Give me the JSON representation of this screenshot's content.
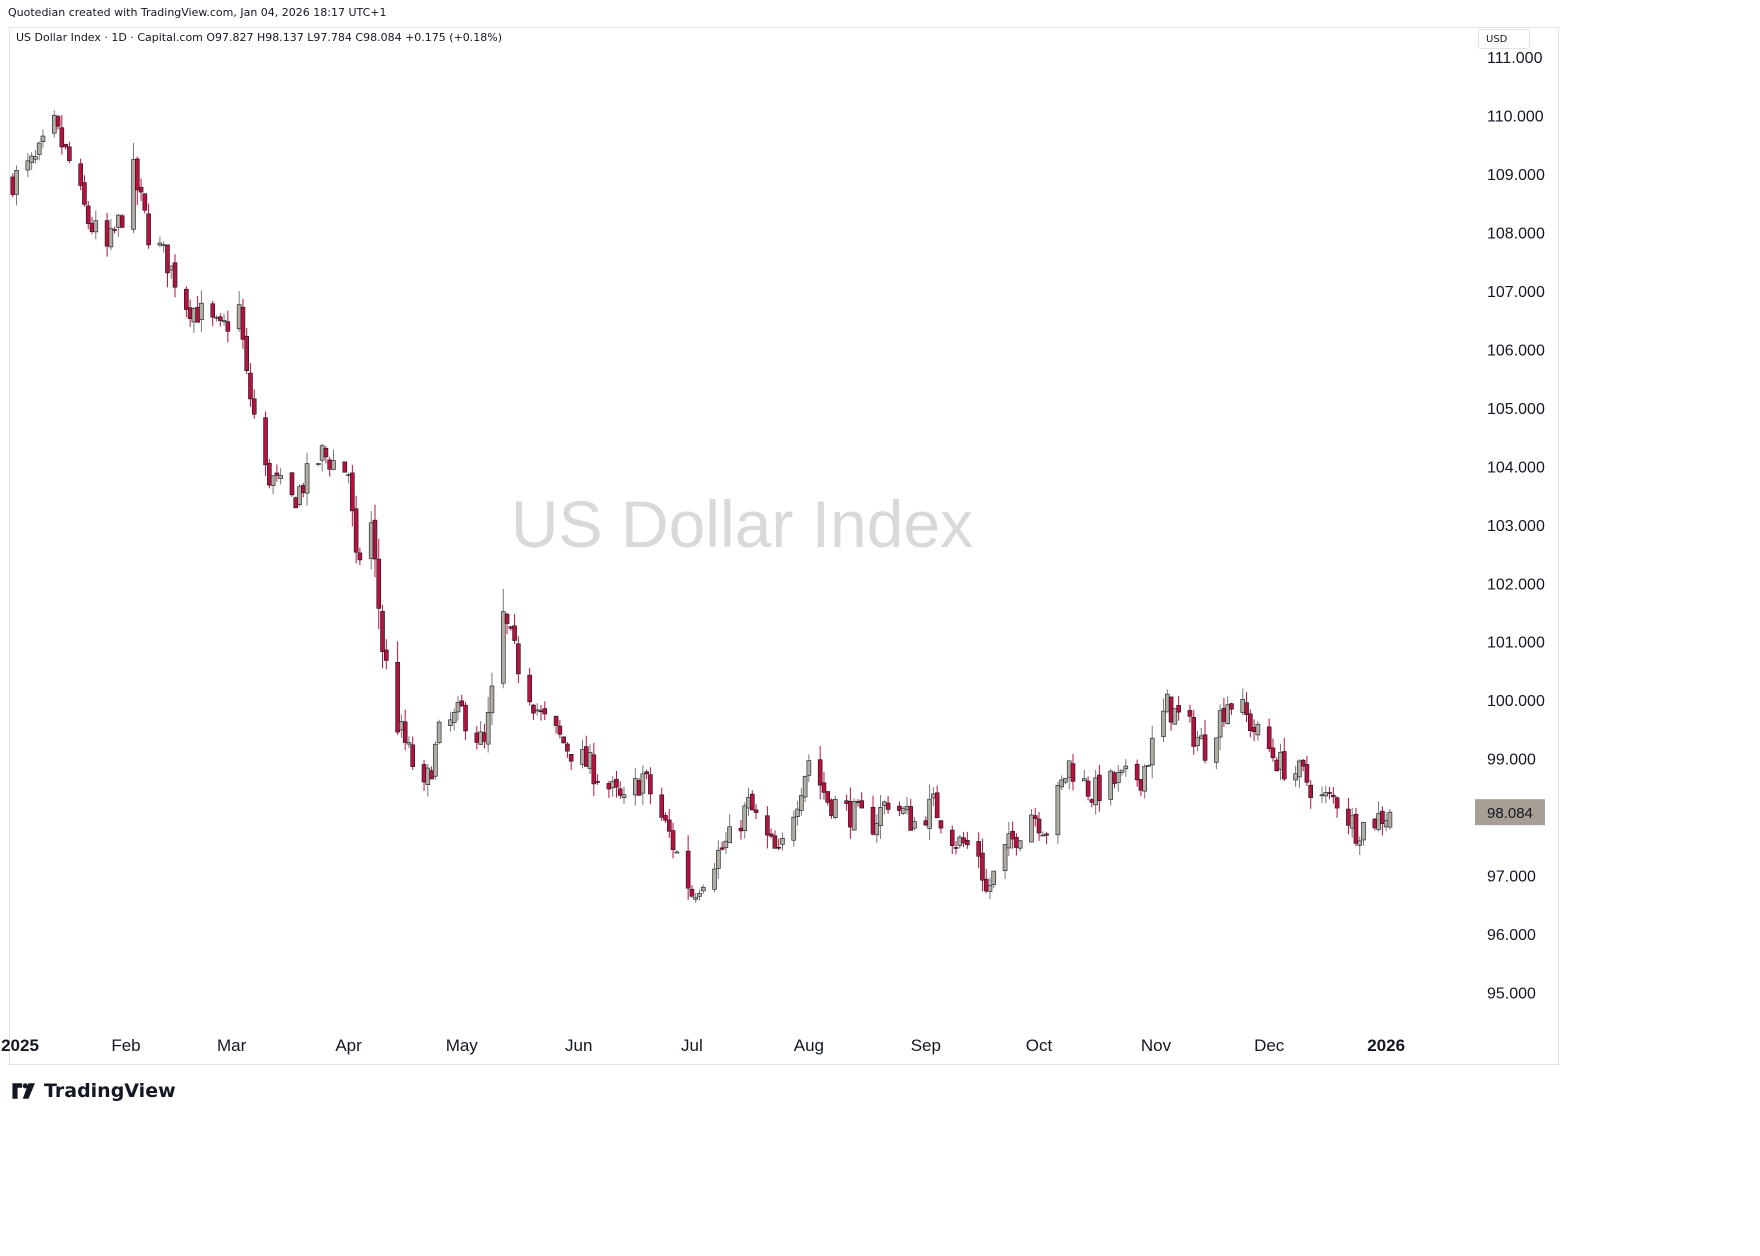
{
  "header": {
    "created_line": "Quotedian created with TradingView.com, Jan 04, 2026 18:17 UTC+1",
    "symbol_line": "US Dollar Index · 1D · Capital.com  O97.827  H98.137  L97.784  C98.084  +0.175 (+0.18%)",
    "currency_button": "USD"
  },
  "watermark": "US Dollar Index",
  "price_tag": "98.084",
  "brand": {
    "name": "TradingView",
    "logo_icon": "tradingview-logo-icon"
  },
  "colors": {
    "up": "#b2ada3",
    "down": "#b5123e",
    "outline": "#131722",
    "tag": "#a79e95"
  },
  "chart_data": {
    "type": "candlestick",
    "title": "US Dollar Index",
    "interval": "1D",
    "source": "Capital.com",
    "y_ticks": [
      "111.000",
      "110.000",
      "109.000",
      "108.000",
      "107.000",
      "106.000",
      "105.000",
      "104.000",
      "103.000",
      "102.000",
      "101.000",
      "100.000",
      "99.000",
      "98.000",
      "97.000",
      "96.000",
      "95.000"
    ],
    "x_ticks": [
      {
        "label": "2025",
        "date": "2025-01-01"
      },
      {
        "label": "Feb",
        "date": "2025-02-01"
      },
      {
        "label": "Mar",
        "date": "2025-03-01"
      },
      {
        "label": "Apr",
        "date": "2025-04-01"
      },
      {
        "label": "May",
        "date": "2025-05-01"
      },
      {
        "label": "Jun",
        "date": "2025-06-01"
      },
      {
        "label": "Jul",
        "date": "2025-07-01"
      },
      {
        "label": "Aug",
        "date": "2025-08-01"
      },
      {
        "label": "Sep",
        "date": "2025-09-01"
      },
      {
        "label": "Oct",
        "date": "2025-10-01"
      },
      {
        "label": "Nov",
        "date": "2025-11-01"
      },
      {
        "label": "Dec",
        "date": "2025-12-01"
      },
      {
        "label": "2026",
        "date": "2026-01-01"
      }
    ],
    "ylim": [
      94.6,
      111.3
    ],
    "xlim": [
      "2025-01-01",
      "2026-01-28"
    ],
    "last": {
      "open": 97.827,
      "high": 98.137,
      "low": 97.784,
      "close": 98.084,
      "change": "+0.175 (+0.18%)"
    },
    "weekly_path": [
      [
        "2025-01-02",
        108.9
      ],
      [
        "2025-01-08",
        109.2
      ],
      [
        "2025-01-13",
        109.8
      ],
      [
        "2025-01-17",
        109.2
      ],
      [
        "2025-01-22",
        108.2
      ],
      [
        "2025-01-27",
        107.7
      ],
      [
        "2025-01-31",
        108.3
      ],
      [
        "2025-02-03",
        109.0
      ],
      [
        "2025-02-07",
        108.0
      ],
      [
        "2025-02-12",
        107.5
      ],
      [
        "2025-02-17",
        106.8
      ],
      [
        "2025-02-21",
        106.6
      ],
      [
        "2025-02-26",
        106.3
      ],
      [
        "2025-03-03",
        106.7
      ],
      [
        "2025-03-05",
        105.5
      ],
      [
        "2025-03-10",
        103.9
      ],
      [
        "2025-03-17",
        103.4
      ],
      [
        "2025-03-25",
        104.2
      ],
      [
        "2025-04-01",
        103.9
      ],
      [
        "2025-04-03",
        102.3
      ],
      [
        "2025-04-07",
        103.0
      ],
      [
        "2025-04-10",
        100.9
      ],
      [
        "2025-04-14",
        99.6
      ],
      [
        "2025-04-21",
        98.4
      ],
      [
        "2025-04-25",
        99.4
      ],
      [
        "2025-05-01",
        99.8
      ],
      [
        "2025-05-07",
        99.2
      ],
      [
        "2025-05-12",
        101.4
      ],
      [
        "2025-05-16",
        100.6
      ],
      [
        "2025-05-22",
        99.7
      ],
      [
        "2025-05-29",
        99.2
      ],
      [
        "2025-06-05",
        98.8
      ],
      [
        "2025-06-13",
        98.2
      ],
      [
        "2025-06-18",
        98.7
      ],
      [
        "2025-06-25",
        97.7
      ],
      [
        "2025-07-01",
        96.7
      ],
      [
        "2025-07-07",
        97.3
      ],
      [
        "2025-07-11",
        97.6
      ],
      [
        "2025-07-16",
        98.2
      ],
      [
        "2025-07-21",
        97.6
      ],
      [
        "2025-07-24",
        97.3
      ],
      [
        "2025-08-01",
        99.0
      ],
      [
        "2025-08-06",
        98.3
      ],
      [
        "2025-08-11",
        98.1
      ],
      [
        "2025-08-18",
        97.9
      ],
      [
        "2025-08-22",
        98.3
      ],
      [
        "2025-08-29",
        97.9
      ],
      [
        "2025-09-03",
        98.2
      ],
      [
        "2025-09-09",
        97.6
      ],
      [
        "2025-09-15",
        97.4
      ],
      [
        "2025-09-17",
        96.7
      ],
      [
        "2025-09-22",
        97.4
      ],
      [
        "2025-09-29",
        98.1
      ],
      [
        "2025-10-03",
        97.8
      ],
      [
        "2025-10-09",
        98.9
      ],
      [
        "2025-10-15",
        98.4
      ],
      [
        "2025-10-21",
        98.6
      ],
      [
        "2025-10-28",
        98.7
      ],
      [
        "2025-11-04",
        99.9
      ],
      [
        "2025-11-10",
        99.5
      ],
      [
        "2025-11-14",
        99.2
      ],
      [
        "2025-11-20",
        100.0
      ],
      [
        "2025-11-24",
        99.8
      ],
      [
        "2025-11-28",
        99.4
      ],
      [
        "2025-12-04",
        98.9
      ],
      [
        "2025-12-10",
        98.7
      ],
      [
        "2025-12-15",
        98.3
      ],
      [
        "2025-12-19",
        98.3
      ],
      [
        "2025-12-24",
        97.8
      ],
      [
        "2026-01-02",
        98.084
      ]
    ]
  }
}
